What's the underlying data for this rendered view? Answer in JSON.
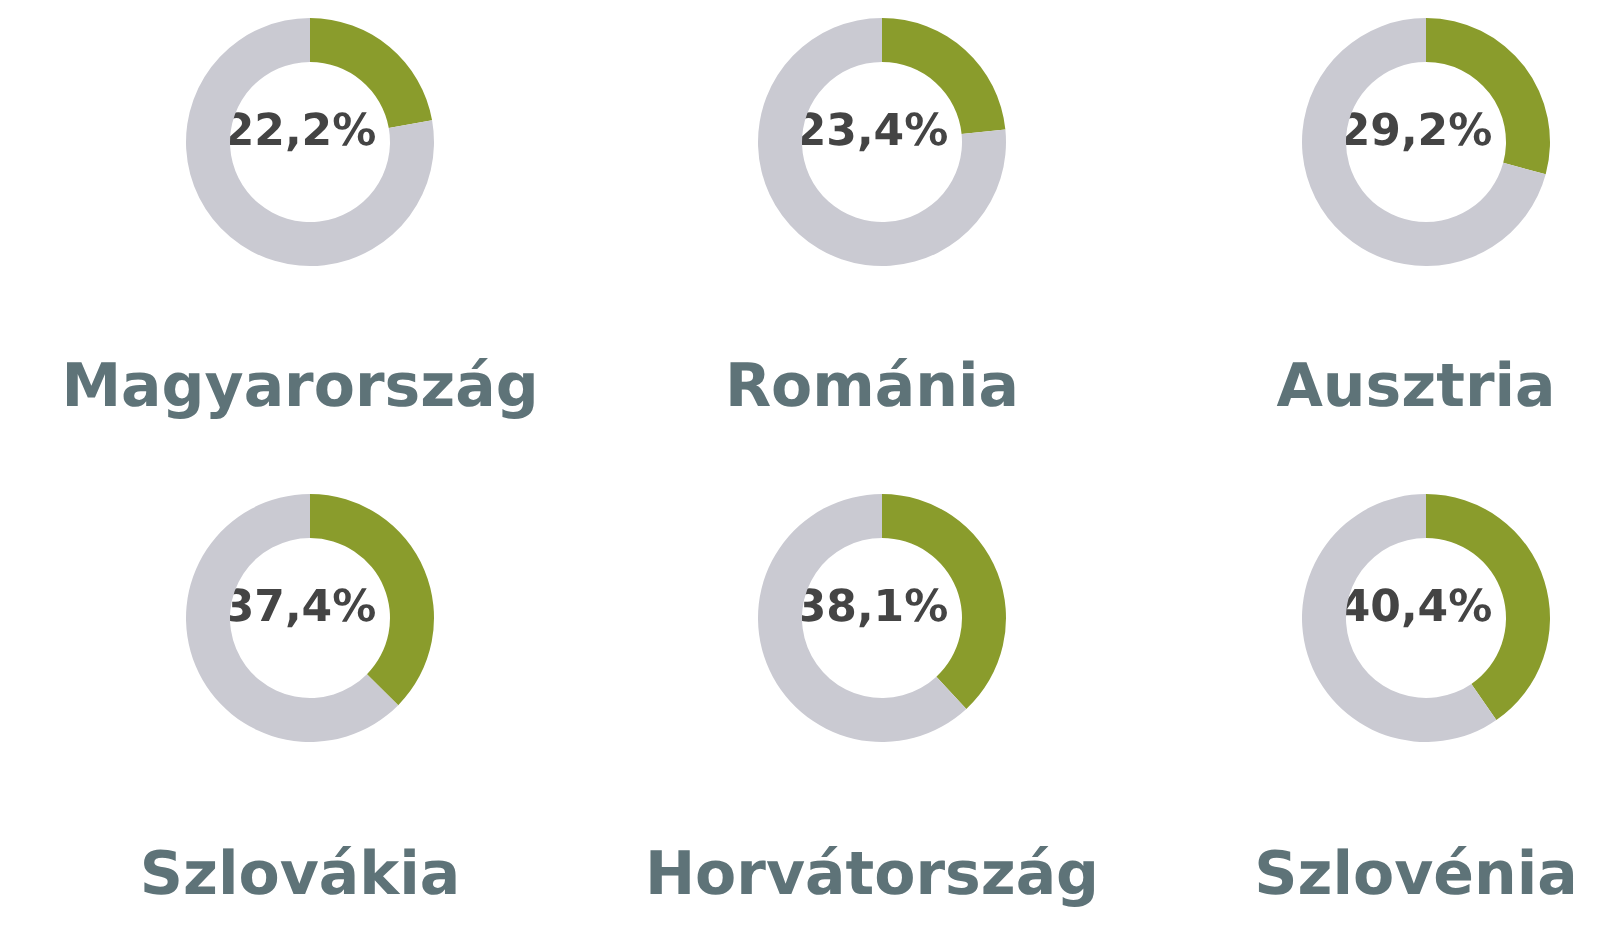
{
  "chart_data": [
    {
      "type": "donut",
      "title": "Magyarország",
      "categories": [
        null,
        null
      ],
      "values": [
        22.2,
        77.8
      ],
      "colors": [
        "#8a9c2c",
        "#cacad2"
      ],
      "annotations": [
        "22,2%"
      ]
    },
    {
      "type": "donut",
      "title": "Románia",
      "categories": [
        null,
        null
      ],
      "values": [
        23.4,
        76.6
      ],
      "colors": [
        "#8a9c2c",
        "#cacad2"
      ],
      "annotations": [
        "23,4%"
      ]
    },
    {
      "type": "donut",
      "title": "Ausztria",
      "categories": [
        null,
        null
      ],
      "values": [
        29.2,
        70.8
      ],
      "colors": [
        "#8a9c2c",
        "#cacad2"
      ],
      "annotations": [
        "29,2%"
      ]
    },
    {
      "type": "donut",
      "title": "Szlovákia",
      "categories": [
        null,
        null
      ],
      "values": [
        37.4,
        62.6
      ],
      "colors": [
        "#8a9c2c",
        "#cacad2"
      ],
      "annotations": [
        "37,4%"
      ]
    },
    {
      "type": "donut",
      "title": "Horvátország",
      "categories": [
        null,
        null
      ],
      "values": [
        38.1,
        61.9
      ],
      "colors": [
        "#8a9c2c",
        "#cacad2"
      ],
      "annotations": [
        "38,1%"
      ]
    },
    {
      "type": "donut",
      "title": "Szlovénia",
      "categories": [
        null,
        null
      ],
      "values": [
        40.4,
        59.6
      ],
      "colors": [
        "#8a9c2c",
        "#cacad2"
      ],
      "annotations": [
        "40,4%"
      ]
    }
  ]
}
